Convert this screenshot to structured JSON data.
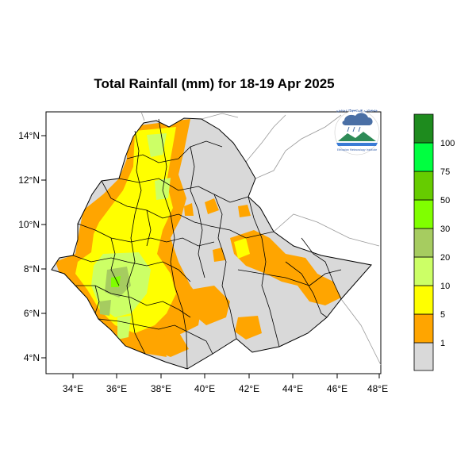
{
  "title": "Total Rainfall (mm) for 18-19 Apr 2025",
  "map": {
    "lon_ticks": [
      "34°E",
      "36°E",
      "38°E",
      "40°E",
      "42°E",
      "44°E",
      "46°E",
      "48°E"
    ],
    "lat_ticks": [
      "14°N",
      "12°N",
      "10°N",
      "8°N",
      "6°N",
      "4°N"
    ],
    "lon_values": [
      34,
      36,
      38,
      40,
      42,
      44,
      46,
      48
    ],
    "lat_values": [
      14,
      12,
      10,
      8,
      6,
      4
    ],
    "lon_range": [
      33,
      48
    ],
    "lat_range": [
      3.2,
      15.0
    ],
    "land_color": "#d9d9d9",
    "sea_color": "#ffffff"
  },
  "colorbar": {
    "labels": [
      "1",
      "5",
      "10",
      "20",
      "30",
      "50",
      "75",
      "100"
    ],
    "colors": [
      "#d9d9d9",
      "#ffa500",
      "#ffff00",
      "#ccff66",
      "#a6cc60",
      "#80ff00",
      "#66cc00",
      "#00ff40",
      "#1e8b1e"
    ]
  },
  "logo": {
    "top_text": "ኢትዮጵያ ሜቲዎሮሎጂ ኢንስቲትዩት",
    "bottom_text": "Ethiopian Meteorology Institute"
  }
}
